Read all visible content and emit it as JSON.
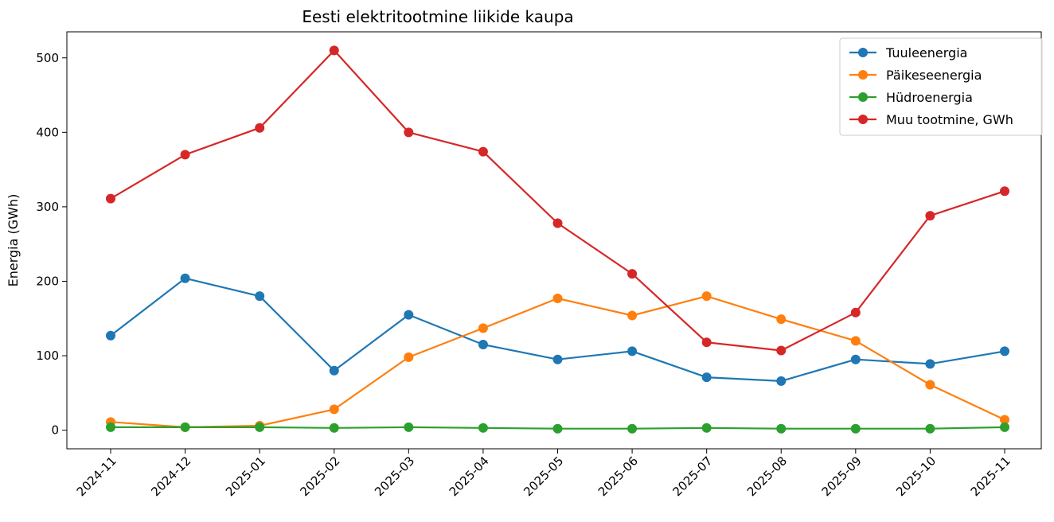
{
  "chart_data": {
    "type": "line",
    "title": "Eesti elektritootmine liikide kaupa",
    "xlabel": "",
    "ylabel": "Energia (GWh)",
    "categories": [
      "2024-11",
      "2024-12",
      "2025-01",
      "2025-02",
      "2025-03",
      "2025-04",
      "2025-05",
      "2025-06",
      "2025-07",
      "2025-08",
      "2025-09",
      "2025-10",
      "2025-11"
    ],
    "ylim": [
      -25,
      535
    ],
    "yticks": [
      0,
      100,
      200,
      300,
      400,
      500
    ],
    "grid": false,
    "legend_position": "top-right",
    "series": [
      {
        "name": "Tuuleenergia",
        "color": "#1f77b4",
        "values": [
          127,
          204,
          180,
          80,
          155,
          115,
          95,
          106,
          71,
          66,
          95,
          89,
          106
        ]
      },
      {
        "name": "Päikeseenergia",
        "color": "#ff7f0e",
        "values": [
          11,
          4,
          6,
          28,
          98,
          137,
          177,
          154,
          180,
          149,
          120,
          61,
          14
        ]
      },
      {
        "name": "Hüdroenergia",
        "color": "#2ca02c",
        "values": [
          4,
          4,
          4,
          3,
          4,
          3,
          2,
          2,
          3,
          2,
          2,
          2,
          4
        ]
      },
      {
        "name": "Muu tootmine, GWh",
        "color": "#d62728",
        "values": [
          311,
          370,
          406,
          510,
          400,
          374,
          278,
          210,
          118,
          107,
          158,
          288,
          321
        ]
      }
    ]
  }
}
